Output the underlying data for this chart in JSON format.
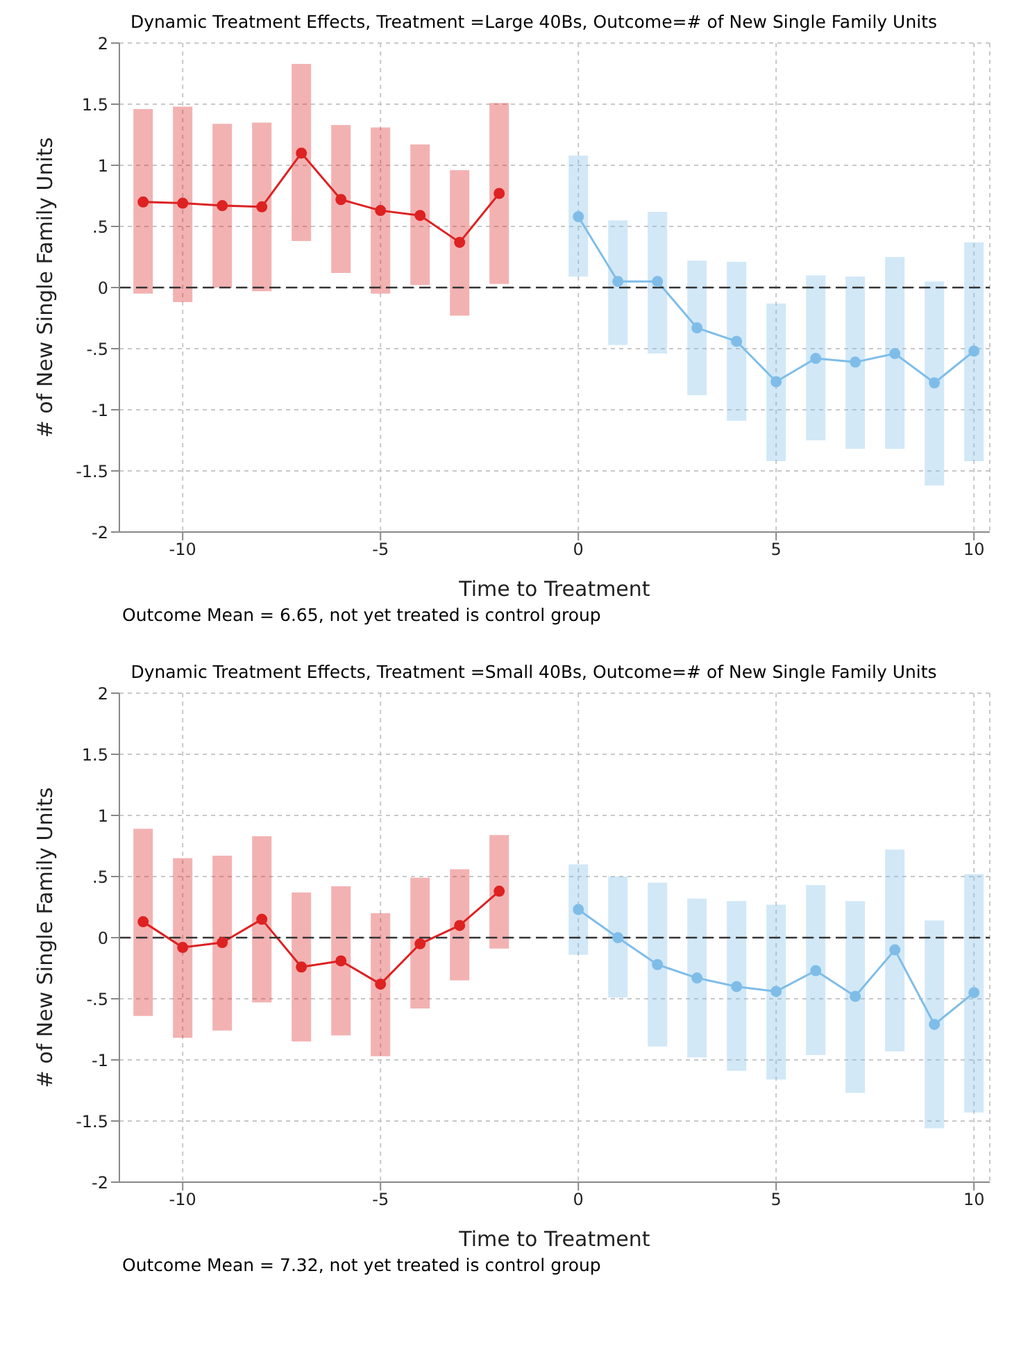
{
  "chart_data": [
    {
      "type": "line",
      "title": "Dynamic Treatment Effects, Treatment =Large 40Bs, Outcome=# of New Single Family Units",
      "xlabel": "Time to Treatment",
      "ylabel": "# of New Single Family Units",
      "xlim": [
        -11.6,
        10.4
      ],
      "xticks": [
        -10,
        -5,
        0,
        5,
        10
      ],
      "ylim": [
        -2,
        2
      ],
      "yticks": [
        -2,
        {
          "value": -1.5,
          "label": "-1.5"
        },
        -1,
        {
          "value": -0.5,
          "label": "-.5"
        },
        0,
        {
          "value": 0.5,
          "label": ".5"
        },
        1,
        1.5,
        2
      ],
      "grid": true,
      "marker": "circle",
      "ref_lines": [
        {
          "axis": "y",
          "value": 0,
          "color": "#333333",
          "line_style": "dashed"
        }
      ],
      "annotations": [
        "Outcome Mean = 6.65, not yet treated is control group"
      ],
      "series": [
        {
          "color": "#dd2222",
          "x": [
            -11,
            -10,
            -9,
            -8,
            -7,
            -6,
            -5,
            -4,
            -3,
            -2
          ],
          "values": [
            0.7,
            0.69,
            0.67,
            0.66,
            1.1,
            0.72,
            0.63,
            0.59,
            0.37,
            0.77
          ],
          "errors": [
            [
              -0.05,
              1.46
            ],
            [
              -0.12,
              1.48
            ],
            [
              0,
              1.34
            ],
            [
              -0.03,
              1.35
            ],
            [
              0.38,
              1.83
            ],
            [
              0.12,
              1.33
            ],
            [
              -0.05,
              1.31
            ],
            [
              0.02,
              1.17
            ],
            [
              -0.23,
              0.96
            ],
            [
              0.03,
              1.51
            ]
          ]
        },
        {
          "color": "#7fbde8",
          "x": [
            0,
            1,
            2,
            3,
            4,
            5,
            6,
            7,
            8,
            9,
            10
          ],
          "values": [
            0.58,
            0.05,
            0.05,
            -0.33,
            -0.44,
            -0.77,
            -0.58,
            -0.61,
            -0.54,
            -0.78,
            -0.52
          ],
          "errors": [
            [
              0.09,
              1.08
            ],
            [
              -0.47,
              0.55
            ],
            [
              -0.54,
              0.62
            ],
            [
              -0.88,
              0.22
            ],
            [
              -1.09,
              0.21
            ],
            [
              -1.42,
              -0.13
            ],
            [
              -1.25,
              0.1
            ],
            [
              -1.32,
              0.09
            ],
            [
              -1.32,
              0.25
            ],
            [
              -1.62,
              0.05
            ],
            [
              -1.42,
              0.37
            ]
          ]
        }
      ]
    },
    {
      "type": "line",
      "title": "Dynamic Treatment Effects, Treatment =Small 40Bs, Outcome=# of New Single Family Units",
      "xlabel": "Time to Treatment",
      "ylabel": "# of New Single Family Units",
      "xlim": [
        -11.6,
        10.4
      ],
      "xticks": [
        -10,
        -5,
        0,
        5,
        10
      ],
      "ylim": [
        -2,
        2
      ],
      "yticks": [
        -2,
        {
          "value": -1.5,
          "label": "-1.5"
        },
        -1,
        {
          "value": -0.5,
          "label": "-.5"
        },
        0,
        {
          "value": 0.5,
          "label": ".5"
        },
        1,
        1.5,
        2
      ],
      "grid": true,
      "marker": "circle",
      "ref_lines": [
        {
          "axis": "y",
          "value": 0,
          "color": "#333333",
          "line_style": "dashed"
        }
      ],
      "annotations": [
        "Outcome Mean = 7.32, not yet treated is control group"
      ],
      "series": [
        {
          "color": "#dd2222",
          "x": [
            -11,
            -10,
            -9,
            -8,
            -7,
            -6,
            -5,
            -4,
            -3,
            -2
          ],
          "values": [
            0.13,
            -0.08,
            -0.04,
            0.15,
            -0.24,
            -0.19,
            -0.38,
            -0.05,
            0.1,
            0.38
          ],
          "errors": [
            [
              -0.64,
              0.89
            ],
            [
              -0.82,
              0.65
            ],
            [
              -0.76,
              0.67
            ],
            [
              -0.53,
              0.83
            ],
            [
              -0.85,
              0.37
            ],
            [
              -0.8,
              0.42
            ],
            [
              -0.97,
              0.2
            ],
            [
              -0.58,
              0.49
            ],
            [
              -0.35,
              0.56
            ],
            [
              -0.09,
              0.84
            ]
          ]
        },
        {
          "color": "#7fbde8",
          "x": [
            0,
            1,
            2,
            3,
            4,
            5,
            6,
            7,
            8,
            9,
            10
          ],
          "values": [
            0.23,
            0,
            -0.22,
            -0.33,
            -0.4,
            -0.44,
            -0.27,
            -0.48,
            -0.1,
            -0.71,
            -0.45
          ],
          "errors": [
            [
              -0.14,
              0.6
            ],
            [
              -0.49,
              0.5
            ],
            [
              -0.89,
              0.45
            ],
            [
              -0.98,
              0.32
            ],
            [
              -1.09,
              0.3
            ],
            [
              -1.16,
              0.27
            ],
            [
              -0.96,
              0.43
            ],
            [
              -1.27,
              0.3
            ],
            [
              -0.93,
              0.72
            ],
            [
              -1.56,
              0.14
            ],
            [
              -1.43,
              0.52
            ]
          ]
        }
      ]
    }
  ]
}
